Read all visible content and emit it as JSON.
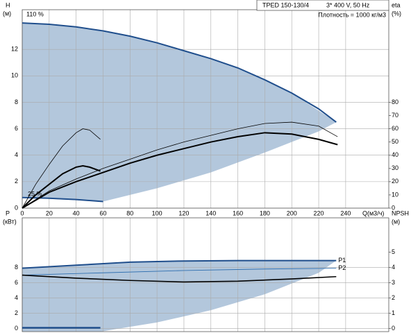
{
  "chart_data": [
    {
      "type": "line",
      "title": "TPED 150-130/4",
      "subtitle": "3* 400 V, 50 Hz",
      "annotations": [
        "Плотность = 1000 кг/м3",
        "110 %",
        "25 %"
      ],
      "ylabel": "H",
      "yunit": "(м)",
      "y2label": "eta",
      "y2unit": "(%)",
      "xlabel": "Q(м3/ч)",
      "xlim": [
        0,
        272
      ],
      "xticks": [
        0,
        20,
        40,
        60,
        80,
        100,
        120,
        140,
        160,
        180,
        200,
        220,
        240
      ],
      "show_xtick_labels": true,
      "ylim": [
        0,
        15
      ],
      "yticks": [
        0,
        2,
        4,
        6,
        8,
        10,
        12
      ],
      "y2lim": [
        0,
        150
      ],
      "y2ticks": [
        0,
        10,
        20,
        30,
        40,
        50,
        60,
        70,
        80
      ],
      "grid": true,
      "area": {
        "color": "#b3c7dc",
        "x": [
          0,
          40,
          80,
          120,
          160,
          200,
          233,
          220,
          180,
          140,
          100,
          60,
          0
        ],
        "values": [
          14,
          13.7,
          13,
          11.9,
          10.6,
          8.7,
          6.5,
          5.8,
          4.2,
          2.7,
          1.5,
          0.5,
          0.8
        ]
      },
      "series": [
        {
          "color": "#1f4e8c",
          "width": 2,
          "x": [
            0,
            20,
            40,
            60,
            80,
            100,
            120,
            140,
            160,
            180,
            200,
            220,
            233
          ],
          "values": [
            14,
            13.9,
            13.7,
            13.4,
            13,
            12.5,
            11.9,
            11.3,
            10.6,
            9.7,
            8.7,
            7.5,
            6.5
          ]
        },
        {
          "color": "#1f4e8c",
          "width": 2,
          "x": [
            0,
            20,
            40,
            60
          ],
          "values": [
            0.8,
            0.75,
            0.65,
            0.5
          ]
        },
        {
          "color": "#000000",
          "width": 2,
          "axis": "y2",
          "x": [
            0,
            20,
            40,
            60,
            80,
            100,
            120,
            140,
            160,
            180,
            200,
            220,
            234
          ],
          "values": [
            0,
            12,
            20,
            27,
            34,
            40,
            45,
            50,
            54,
            57,
            56,
            52,
            48
          ]
        },
        {
          "color": "#000000",
          "width": 0.8,
          "axis": "y2",
          "x": [
            0,
            20,
            40,
            60,
            80,
            100,
            120,
            140,
            160,
            180,
            200,
            220,
            234
          ],
          "values": [
            0,
            13,
            22,
            30,
            37,
            44,
            50,
            55,
            60,
            64,
            65,
            62,
            54
          ]
        },
        {
          "color": "#000000",
          "width": 0.8,
          "axis": "y2",
          "x": [
            0,
            10,
            20,
            30,
            40,
            45,
            50,
            58
          ],
          "values": [
            0,
            18,
            33,
            47,
            57,
            60,
            59,
            52
          ]
        },
        {
          "color": "#000000",
          "width": 2,
          "axis": "y2",
          "x": [
            0,
            10,
            20,
            30,
            40,
            45,
            50,
            58
          ],
          "values": [
            0,
            10,
            18,
            26,
            31,
            32,
            31,
            28
          ]
        }
      ]
    },
    {
      "type": "line",
      "ylabel": "P",
      "yunit": "(кВт)",
      "y2label": "NPSH",
      "y2unit": "(м)",
      "xlim": [
        0,
        272
      ],
      "xticks": [
        0,
        20,
        40,
        60,
        80,
        100,
        120,
        140,
        160,
        180,
        200,
        220,
        240
      ],
      "show_xtick_labels": false,
      "ylim": [
        -0.4,
        14.5
      ],
      "yticks": [
        0,
        2,
        4,
        6,
        8
      ],
      "y2lim": [
        -0.2,
        7.25
      ],
      "y2ticks": [
        0,
        1,
        2,
        3,
        4,
        5
      ],
      "grid": true,
      "area": {
        "color": "#b3c7dc",
        "x": [
          0,
          40,
          80,
          120,
          160,
          200,
          233,
          220,
          180,
          140,
          100,
          58,
          0
        ],
        "values": [
          7.9,
          8.3,
          8.7,
          8.85,
          8.9,
          8.9,
          8.9,
          7.3,
          4.5,
          2.4,
          0.8,
          -0.4,
          -0.4
        ]
      },
      "series": [
        {
          "name": "P1",
          "color": "#1f4e8c",
          "width": 2,
          "x": [
            0,
            40,
            80,
            120,
            160,
            200,
            233
          ],
          "values": [
            7.9,
            8.3,
            8.7,
            8.85,
            8.9,
            8.9,
            8.9
          ]
        },
        {
          "name": "P2",
          "color": "#2f6fb0",
          "width": 0.9,
          "x": [
            0,
            60,
            120,
            180,
            233
          ],
          "values": [
            7.0,
            7.3,
            7.6,
            7.8,
            7.9
          ]
        },
        {
          "color": "#000000",
          "width": 1.6,
          "axis": "y2",
          "x": [
            0,
            40,
            80,
            120,
            160,
            200,
            233
          ],
          "values": [
            3.5,
            3.3,
            3.15,
            3.05,
            3.1,
            3.25,
            3.4
          ]
        },
        {
          "color": "#1f4e8c",
          "width": 2.5,
          "x": [
            0,
            58
          ],
          "values": [
            0.1,
            0.1
          ]
        }
      ]
    }
  ]
}
